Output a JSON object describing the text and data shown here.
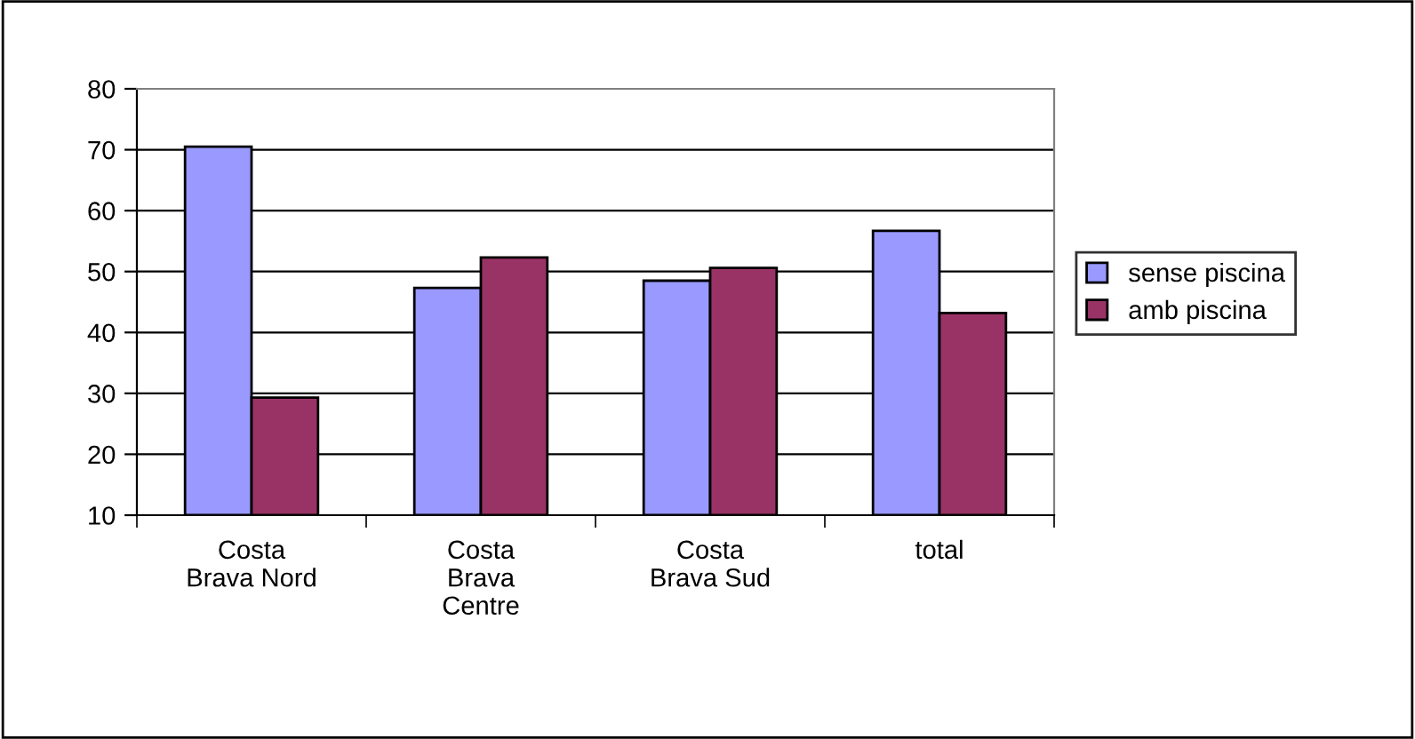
{
  "chart_data": {
    "type": "bar",
    "categories": [
      "Costa\nBrava Nord",
      "Costa\nBrava\nCentre",
      "Costa\nBrava Sud",
      "total"
    ],
    "series": [
      {
        "name": "sense piscina",
        "color": "#9999ff",
        "values": [
          70.5,
          47.3,
          48.5,
          56.7
        ]
      },
      {
        "name": "amb piscina",
        "color": "#993366",
        "values": [
          29.3,
          52.3,
          50.6,
          43.2
        ]
      }
    ],
    "ylim": [
      10,
      80
    ],
    "yticks": [
      10,
      20,
      30,
      40,
      50,
      60,
      70,
      80
    ],
    "grid": "y",
    "legend": "right"
  }
}
